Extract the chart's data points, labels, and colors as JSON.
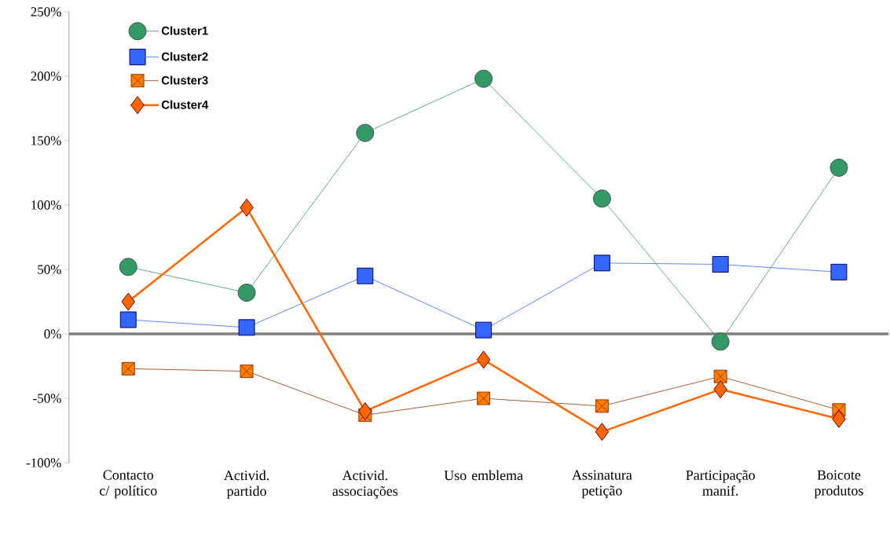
{
  "chart_data": {
    "type": "line",
    "categories": [
      "Contacto c/ político",
      "Activid. partido",
      "Activid. associações",
      "Uso emblema",
      "Assinatura petição",
      "Participação manif.",
      "Boicote produtos"
    ],
    "series": [
      {
        "name": "Cluster1",
        "color": "#339966",
        "marker": "circle",
        "values": [
          52,
          32,
          156,
          198,
          105,
          -6,
          129
        ]
      },
      {
        "name": "Cluster2",
        "color": "#3366ff",
        "marker": "square",
        "values": [
          11,
          5,
          45,
          3,
          55,
          54,
          48
        ]
      },
      {
        "name": "Cluster3",
        "color": "#993300",
        "marker": "square",
        "values": [
          -27,
          -29,
          -63,
          -50,
          -56,
          -33,
          -59
        ]
      },
      {
        "name": "Cluster4",
        "color": "#ff6600",
        "marker": "diamond",
        "values": [
          25,
          98,
          -60,
          -20,
          -76,
          -43,
          -66
        ]
      }
    ],
    "ylim": [
      -100,
      250
    ],
    "yticks": [
      {
        "value": -100,
        "label": "-100%"
      },
      {
        "value": -50,
        "label": "-50%"
      },
      {
        "value": 0,
        "label": "0%"
      },
      {
        "value": 50,
        "label": "50%"
      },
      {
        "value": 100,
        "label": "100%"
      },
      {
        "value": 150,
        "label": "150%"
      },
      {
        "value": 200,
        "label": "200%"
      },
      {
        "value": 250,
        "label": "250%"
      }
    ],
    "ref_lines": [
      {
        "axis": "y",
        "value": 0,
        "color": "#808080"
      }
    ],
    "legend": "top left",
    "grid": false
  }
}
